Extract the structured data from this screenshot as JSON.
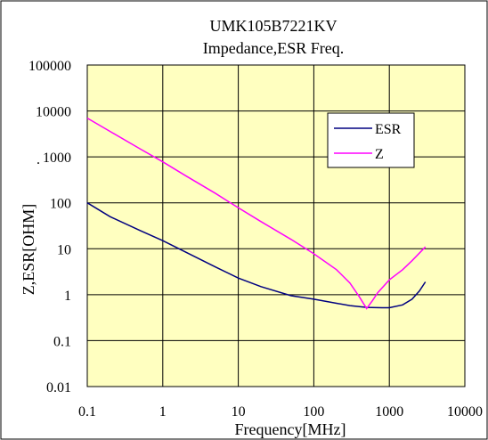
{
  "chart_data": {
    "type": "line",
    "title": "UMK105B7221KV",
    "subtitle": "Impedance,ESR Freq.",
    "xlabel": "Frequency[MHz]",
    "ylabel": "Z,ESR[OHM]",
    "x_scale": "log",
    "y_scale": "log",
    "xlim": [
      0.1,
      10000
    ],
    "ylim": [
      0.01,
      100000
    ],
    "x_ticks": [
      "0.1",
      "1",
      "10",
      "100",
      "1000",
      "10000"
    ],
    "y_ticks": [
      "100000",
      "10000",
      "1000",
      "100",
      "10",
      "1",
      "0.1",
      "0.01"
    ],
    "grid": true,
    "legend_position": "top-right",
    "colors": {
      "plot_background": "#FFFFC0",
      "grid": "#000000",
      "ESR": "#000080",
      "Z": "#FF00FF"
    },
    "series": [
      {
        "name": "ESR",
        "color": "#000080",
        "points": [
          [
            0.1,
            100
          ],
          [
            0.2,
            50
          ],
          [
            0.5,
            25
          ],
          [
            1,
            15
          ],
          [
            2,
            8.5
          ],
          [
            5,
            4
          ],
          [
            10,
            2.3
          ],
          [
            20,
            1.5
          ],
          [
            50,
            0.95
          ],
          [
            100,
            0.8
          ],
          [
            200,
            0.65
          ],
          [
            300,
            0.58
          ],
          [
            500,
            0.53
          ],
          [
            800,
            0.52
          ],
          [
            1000,
            0.52
          ],
          [
            1500,
            0.6
          ],
          [
            2000,
            0.8
          ],
          [
            2500,
            1.2
          ],
          [
            3000,
            1.9
          ]
        ]
      },
      {
        "name": "Z",
        "color": "#FF00FF",
        "points": [
          [
            0.1,
            7000
          ],
          [
            0.2,
            3600
          ],
          [
            0.5,
            1500
          ],
          [
            1,
            780
          ],
          [
            2,
            390
          ],
          [
            5,
            160
          ],
          [
            10,
            78
          ],
          [
            20,
            39
          ],
          [
            50,
            16
          ],
          [
            100,
            7.8
          ],
          [
            200,
            3.5
          ],
          [
            300,
            1.8
          ],
          [
            400,
            0.9
          ],
          [
            500,
            0.5
          ],
          [
            600,
            0.75
          ],
          [
            700,
            1.1
          ],
          [
            1000,
            2.1
          ],
          [
            1500,
            3.5
          ],
          [
            2000,
            5.5
          ],
          [
            3000,
            11
          ]
        ]
      }
    ]
  }
}
